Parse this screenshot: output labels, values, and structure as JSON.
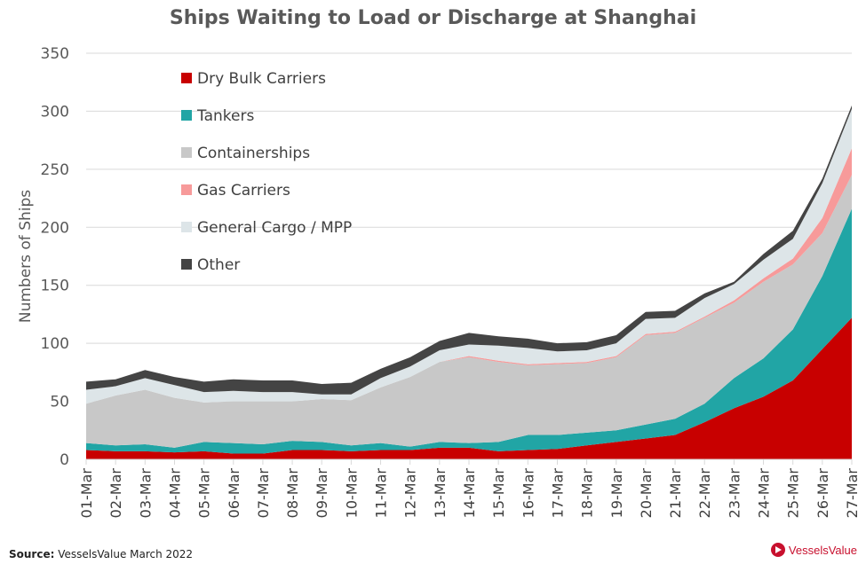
{
  "chart_data": {
    "type": "area",
    "stacked": true,
    "title": "Ships Waiting to Load or Discharge at Shanghai",
    "xlabel": "",
    "ylabel": "Numbers of Ships",
    "ylim": [
      0,
      350
    ],
    "yticks": [
      0,
      50,
      100,
      150,
      200,
      250,
      300,
      350
    ],
    "grid": true,
    "legend_position": "top-left",
    "categories": [
      "01-Mar",
      "02-Mar",
      "03-Mar",
      "04-Mar",
      "05-Mar",
      "06-Mar",
      "07-Mar",
      "08-Mar",
      "09-Mar",
      "10-Mar",
      "11-Mar",
      "12-Mar",
      "13-Mar",
      "14-Mar",
      "15-Mar",
      "16-Mar",
      "17-Mar",
      "18-Mar",
      "19-Mar",
      "20-Mar",
      "21-Mar",
      "22-Mar",
      "23-Mar",
      "24-Mar",
      "25-Mar",
      "26-Mar",
      "27-Mar"
    ],
    "series": [
      {
        "name": "Dry Bulk Carriers",
        "color": "#c80000",
        "values": [
          8,
          7,
          7,
          6,
          7,
          5,
          5,
          8,
          8,
          7,
          8,
          8,
          10,
          10,
          7,
          8,
          9,
          12,
          15,
          18,
          21,
          32,
          44,
          54,
          68,
          95,
          122
        ]
      },
      {
        "name": "Tankers",
        "color": "#21a5a5",
        "values": [
          6,
          5,
          6,
          4,
          8,
          9,
          8,
          8,
          7,
          5,
          6,
          3,
          5,
          4,
          8,
          13,
          12,
          11,
          10,
          12,
          14,
          16,
          26,
          33,
          44,
          63,
          94
        ]
      },
      {
        "name": "Containerships",
        "color": "#c8c8c8",
        "values": [
          34,
          43,
          47,
          43,
          34,
          36,
          37,
          34,
          37,
          39,
          48,
          60,
          69,
          74,
          69,
          60,
          61,
          60,
          63,
          77,
          74,
          74,
          65,
          66,
          56,
          37,
          29
        ]
      },
      {
        "name": "Gas Carriers",
        "color": "#f79a9a",
        "values": [
          0,
          0,
          0,
          0,
          0,
          0,
          0,
          0,
          0,
          0,
          0,
          0,
          0,
          1,
          1,
          1,
          1,
          1,
          1,
          1,
          1,
          1,
          2,
          3,
          5,
          13,
          23
        ]
      },
      {
        "name": "General Cargo / MPP",
        "color": "#dde5e8",
        "values": [
          12,
          8,
          10,
          11,
          9,
          9,
          8,
          8,
          4,
          5,
          8,
          9,
          10,
          10,
          13,
          14,
          10,
          10,
          11,
          13,
          12,
          16,
          14,
          16,
          17,
          30,
          34
        ]
      },
      {
        "name": "Other",
        "color": "#444444",
        "values": [
          7,
          6,
          7,
          7,
          9,
          10,
          10,
          10,
          9,
          10,
          8,
          8,
          8,
          10,
          8,
          8,
          7,
          7,
          7,
          6,
          6,
          4,
          2,
          5,
          7,
          4,
          3
        ]
      }
    ]
  },
  "footer": {
    "source_label": "Source:",
    "source_text": "VesselsValue March 2022",
    "logo_text": "VesselsValue"
  }
}
